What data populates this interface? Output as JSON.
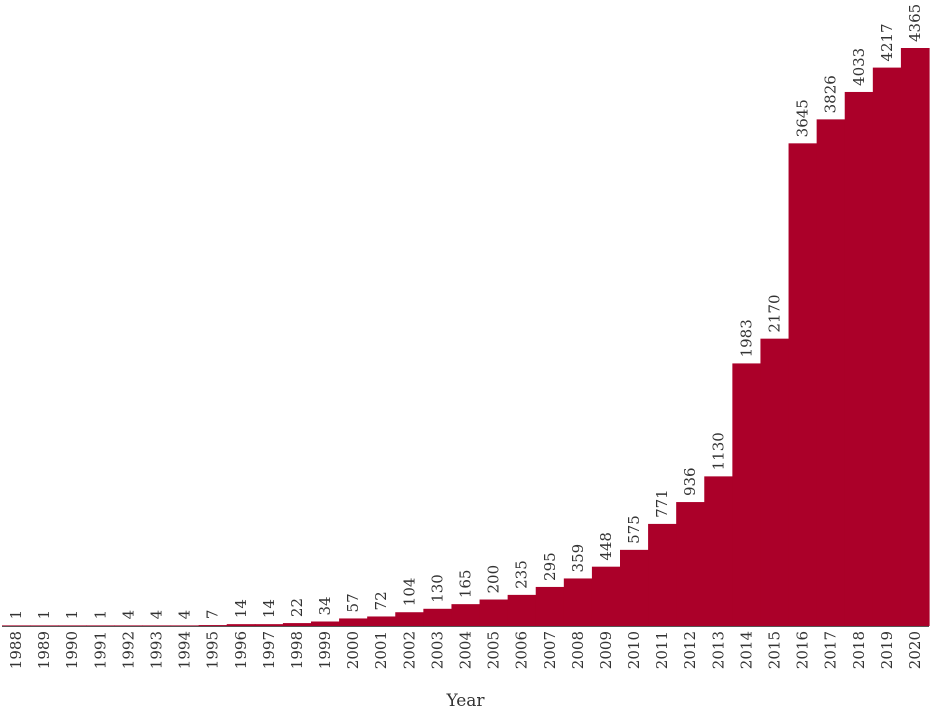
{
  "chart_data": {
    "type": "bar",
    "categories": [
      "1988",
      "1989",
      "1990",
      "1991",
      "1992",
      "1993",
      "1994",
      "1995",
      "1996",
      "1997",
      "1998",
      "1999",
      "2000",
      "2001",
      "2002",
      "2003",
      "2004",
      "2005",
      "2006",
      "2007",
      "2008",
      "2009",
      "2010",
      "2011",
      "2012",
      "2013",
      "2014",
      "2015",
      "2016",
      "2017",
      "2018",
      "2019",
      "2020"
    ],
    "values": [
      1,
      1,
      1,
      1,
      4,
      4,
      4,
      7,
      14,
      14,
      22,
      34,
      57,
      72,
      104,
      130,
      165,
      200,
      235,
      295,
      359,
      448,
      575,
      771,
      936,
      1130,
      1983,
      2170,
      3645,
      3826,
      4033,
      4217,
      4365
    ],
    "title": "",
    "xlabel": "Year",
    "ylabel": "",
    "ylim": [
      0,
      4365
    ],
    "grid": false,
    "colors": {
      "bar": "#ab0029"
    }
  }
}
